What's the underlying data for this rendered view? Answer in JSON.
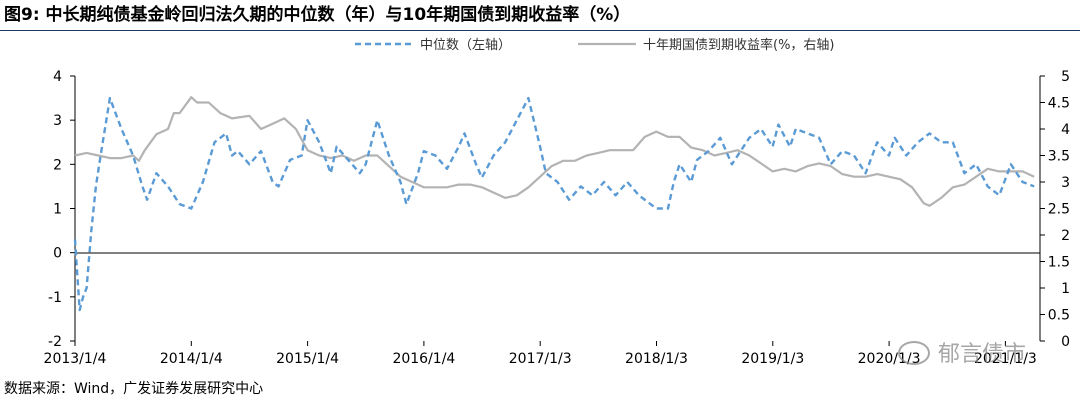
{
  "title": "图9:  中长期纯债基金岭回归法久期的中位数（年）与10年期国债到期收益率（%）",
  "source": "数据来源：Wind，广发证券发展研究中心",
  "watermark": "郁言债市",
  "chart_data": {
    "type": "line",
    "x_ticks": [
      "2013/1/4",
      "2014/1/4",
      "2015/1/4",
      "2016/1/4",
      "2017/1/3",
      "2018/1/3",
      "2019/1/3",
      "2020/1/3",
      "2021/1/3"
    ],
    "left_axis": {
      "ylim": [
        -2,
        4
      ],
      "ticks": [
        "-2",
        "-1",
        "0",
        "1",
        "2",
        "3",
        "4"
      ]
    },
    "right_axis": {
      "ylim": [
        0,
        5
      ],
      "ticks": [
        "0",
        "0.5",
        "1",
        "1.5",
        "2",
        "2.5",
        "3",
        "3.5",
        "4",
        "4.5",
        "5"
      ]
    },
    "legend_position": "top",
    "series": [
      {
        "name": "中位数（左轴）",
        "axis": "left",
        "style": "dashed",
        "color": "#5b9bd5",
        "x": [
          2013.0,
          2013.02,
          2013.04,
          2013.07,
          2013.1,
          2013.14,
          2013.18,
          2013.22,
          2013.3,
          2013.4,
          2013.5,
          2013.58,
          2013.62,
          2013.7,
          2013.8,
          2013.9,
          2014.0,
          2014.1,
          2014.2,
          2014.3,
          2014.35,
          2014.4,
          2014.5,
          2014.6,
          2014.7,
          2014.75,
          2014.85,
          2014.95,
          2015.0,
          2015.1,
          2015.2,
          2015.25,
          2015.35,
          2015.45,
          2015.5,
          2015.6,
          2015.7,
          2015.8,
          2015.85,
          2015.95,
          2016.0,
          2016.1,
          2016.2,
          2016.3,
          2016.35,
          2016.45,
          2016.5,
          2016.6,
          2016.7,
          2016.8,
          2016.9,
          2017.0,
          2017.05,
          2017.15,
          2017.25,
          2017.35,
          2017.45,
          2017.55,
          2017.65,
          2017.75,
          2017.85,
          2017.95,
          2018.0,
          2018.1,
          2018.15,
          2018.2,
          2018.3,
          2018.35,
          2018.45,
          2018.55,
          2018.65,
          2018.75,
          2018.8,
          2018.9,
          2019.0,
          2019.05,
          2019.15,
          2019.2,
          2019.3,
          2019.4,
          2019.5,
          2019.6,
          2019.7,
          2019.8,
          2019.9,
          2020.0,
          2020.05,
          2020.15,
          2020.25,
          2020.35,
          2020.45,
          2020.55,
          2020.65,
          2020.75,
          2020.85,
          2020.95,
          2021.05,
          2021.15,
          2021.25
        ],
        "y": [
          0.3,
          -0.5,
          -1.3,
          -1.0,
          -0.8,
          0.5,
          1.5,
          2.2,
          3.5,
          2.8,
          2.2,
          1.5,
          1.2,
          1.8,
          1.5,
          1.1,
          1.0,
          1.6,
          2.5,
          2.7,
          2.2,
          2.3,
          2.0,
          2.3,
          1.6,
          1.5,
          2.1,
          2.2,
          3.0,
          2.5,
          1.8,
          2.4,
          2.1,
          1.8,
          2.0,
          3.0,
          2.2,
          1.6,
          1.1,
          1.8,
          2.3,
          2.2,
          1.9,
          2.4,
          2.7,
          2.0,
          1.7,
          2.2,
          2.5,
          3.0,
          3.5,
          2.4,
          1.8,
          1.6,
          1.2,
          1.5,
          1.3,
          1.6,
          1.3,
          1.6,
          1.3,
          1.1,
          1.0,
          1.0,
          1.6,
          2.0,
          1.6,
          2.1,
          2.3,
          2.6,
          2.0,
          2.4,
          2.6,
          2.8,
          2.4,
          2.9,
          2.4,
          2.8,
          2.7,
          2.6,
          2.0,
          2.3,
          2.2,
          1.8,
          2.5,
          2.2,
          2.6,
          2.2,
          2.5,
          2.7,
          2.5,
          2.5,
          1.8,
          2.0,
          1.5,
          1.3,
          2.0,
          1.6,
          1.5
        ]
      },
      {
        "name": "十年期国债到期收益率(%，右轴)",
        "axis": "right",
        "style": "solid",
        "color": "#b3b3b3",
        "x": [
          2013.0,
          2013.1,
          2013.2,
          2013.3,
          2013.4,
          2013.5,
          2013.55,
          2013.6,
          2013.7,
          2013.8,
          2013.85,
          2013.9,
          2014.0,
          2014.05,
          2014.15,
          2014.25,
          2014.35,
          2014.5,
          2014.6,
          2014.7,
          2014.8,
          2014.9,
          2015.0,
          2015.1,
          2015.2,
          2015.3,
          2015.4,
          2015.5,
          2015.6,
          2015.7,
          2015.8,
          2015.9,
          2016.0,
          2016.1,
          2016.2,
          2016.3,
          2016.4,
          2016.5,
          2016.6,
          2016.7,
          2016.8,
          2016.9,
          2017.0,
          2017.1,
          2017.2,
          2017.3,
          2017.4,
          2017.5,
          2017.6,
          2017.7,
          2017.8,
          2017.9,
          2018.0,
          2018.1,
          2018.2,
          2018.3,
          2018.4,
          2018.5,
          2018.6,
          2018.7,
          2018.8,
          2018.9,
          2019.0,
          2019.1,
          2019.2,
          2019.3,
          2019.4,
          2019.5,
          2019.6,
          2019.7,
          2019.8,
          2019.9,
          2020.0,
          2020.1,
          2020.2,
          2020.3,
          2020.35,
          2020.45,
          2020.55,
          2020.65,
          2020.75,
          2020.85,
          2020.95,
          2021.05,
          2021.15,
          2021.25
        ],
        "y": [
          3.5,
          3.55,
          3.5,
          3.45,
          3.45,
          3.5,
          3.4,
          3.6,
          3.9,
          4.0,
          4.3,
          4.3,
          4.6,
          4.5,
          4.5,
          4.3,
          4.2,
          4.25,
          4.0,
          4.1,
          4.2,
          4.0,
          3.6,
          3.5,
          3.45,
          3.5,
          3.4,
          3.5,
          3.5,
          3.3,
          3.1,
          3.0,
          2.9,
          2.9,
          2.9,
          2.95,
          2.95,
          2.9,
          2.8,
          2.7,
          2.75,
          2.9,
          3.1,
          3.3,
          3.4,
          3.4,
          3.5,
          3.55,
          3.6,
          3.6,
          3.6,
          3.85,
          3.95,
          3.85,
          3.85,
          3.65,
          3.6,
          3.5,
          3.55,
          3.6,
          3.5,
          3.35,
          3.2,
          3.25,
          3.2,
          3.3,
          3.35,
          3.3,
          3.15,
          3.1,
          3.1,
          3.15,
          3.1,
          3.05,
          2.9,
          2.6,
          2.55,
          2.7,
          2.9,
          2.95,
          3.1,
          3.25,
          3.2,
          3.2,
          3.2,
          3.1
        ]
      }
    ]
  }
}
